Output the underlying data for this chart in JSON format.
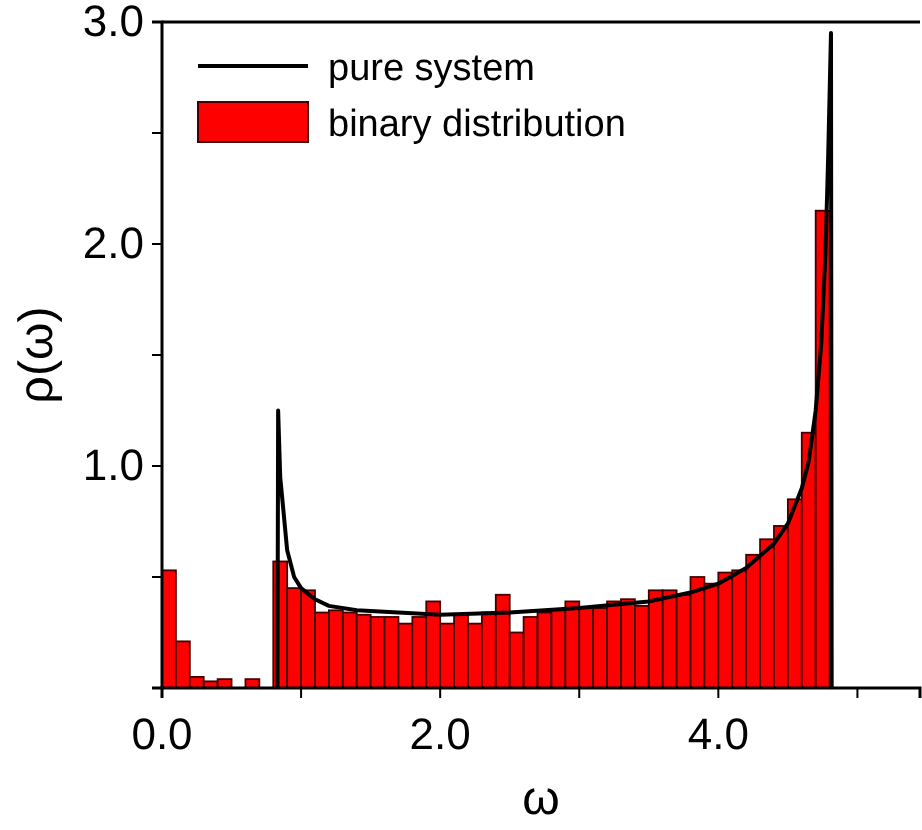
{
  "chart_data": {
    "type": "histogram",
    "xlabel": "ω",
    "ylabel": "ρ(ω)",
    "legend": "top left",
    "xlim": [
      0,
      5.45
    ],
    "ylim": [
      0,
      3.0
    ],
    "xticks": [
      {
        "value": 0,
        "label": "0.0"
      },
      {
        "value": 1,
        "label": null
      },
      {
        "value": 2,
        "label": "2.0"
      },
      {
        "value": 3,
        "label": null
      },
      {
        "value": 4,
        "label": "4.0"
      },
      {
        "value": 5,
        "label": null
      }
    ],
    "yticks": [
      {
        "value": 0.5,
        "label": null
      },
      {
        "value": 1,
        "label": "1.0"
      },
      {
        "value": 1.5,
        "label": null
      },
      {
        "value": 2,
        "label": "2.0"
      },
      {
        "value": 2.5,
        "label": null
      },
      {
        "value": 3,
        "label": "3.0"
      }
    ],
    "series": [
      {
        "name": "pure system",
        "type": "line",
        "color": "#000000",
        "x": [
          0.83,
          0.835,
          0.85,
          0.9,
          0.95,
          1.0,
          1.1,
          1.2,
          1.4,
          1.7,
          2.0,
          2.5,
          3.0,
          3.5,
          3.8,
          4.0,
          4.2,
          4.4,
          4.5,
          4.6,
          4.65,
          4.7,
          4.74,
          4.77,
          4.79,
          4.81,
          4.815
        ],
        "values": [
          0,
          1.25,
          0.95,
          0.62,
          0.5,
          0.45,
          0.4,
          0.37,
          0.35,
          0.34,
          0.33,
          0.34,
          0.36,
          0.39,
          0.43,
          0.47,
          0.54,
          0.65,
          0.74,
          0.9,
          1.02,
          1.25,
          1.55,
          1.95,
          2.4,
          2.95,
          0
        ]
      },
      {
        "name": "binary distribution",
        "color": "#ff0000",
        "bins": [
          0,
          0.1,
          0.2,
          0.3,
          0.4,
          0.5,
          0.6,
          0.7,
          0.8,
          0.9,
          1.0,
          1.1,
          1.2,
          1.3,
          1.4,
          1.5,
          1.6,
          1.7,
          1.8,
          1.9,
          2.0,
          2.1,
          2.2,
          2.3,
          2.4,
          2.5,
          2.6,
          2.7,
          2.8,
          2.9,
          3.0,
          3.1,
          3.2,
          3.3,
          3.4,
          3.5,
          3.6,
          3.7,
          3.8,
          3.9,
          4.0,
          4.1,
          4.2,
          4.3,
          4.4,
          4.5,
          4.6,
          4.7,
          4.8
        ],
        "values": [
          0.53,
          0.21,
          0.05,
          0.03,
          0.04,
          0,
          0.04,
          0,
          0.57,
          0.45,
          0.44,
          0.34,
          0.35,
          0.34,
          0.33,
          0.32,
          0.32,
          0.29,
          0.32,
          0.39,
          0.29,
          0.33,
          0.29,
          0.34,
          0.42,
          0.25,
          0.32,
          0.34,
          0.35,
          0.39,
          0.36,
          0.36,
          0.39,
          0.4,
          0.37,
          0.44,
          0.44,
          0.42,
          0.5,
          0.47,
          0.52,
          0.53,
          0.6,
          0.67,
          0.73,
          0.85,
          1.15,
          2.15
        ]
      }
    ]
  }
}
